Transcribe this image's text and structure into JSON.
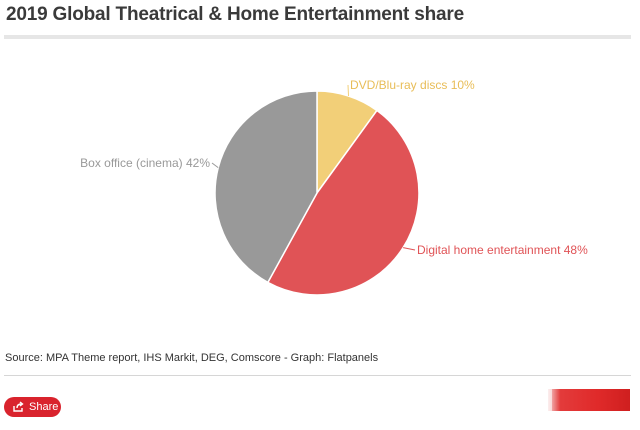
{
  "title": "2019 Global Theatrical & Home Entertainment share",
  "source": "Source: MPA Theme report, IHS Markit, DEG, Comscore - Graph: Flatpanels",
  "share_label": "Share",
  "colors": {
    "dvd": "#f2cf78",
    "digital": "#e05356",
    "box_office": "#999999",
    "brand": "#d9232d"
  },
  "chart_data": {
    "type": "pie",
    "title": "2019 Global Theatrical & Home Entertainment share",
    "slices": [
      {
        "label": "DVD/Blu-ray discs 10%",
        "name": "DVD/Blu-ray discs",
        "value": 10,
        "color": "#f2cf78"
      },
      {
        "label": "Digital home entertainment 48%",
        "name": "Digital home entertainment",
        "value": 48,
        "color": "#e05356"
      },
      {
        "label": "Box office (cinema) 42%",
        "name": "Box office (cinema)",
        "value": 42,
        "color": "#999999"
      }
    ]
  }
}
